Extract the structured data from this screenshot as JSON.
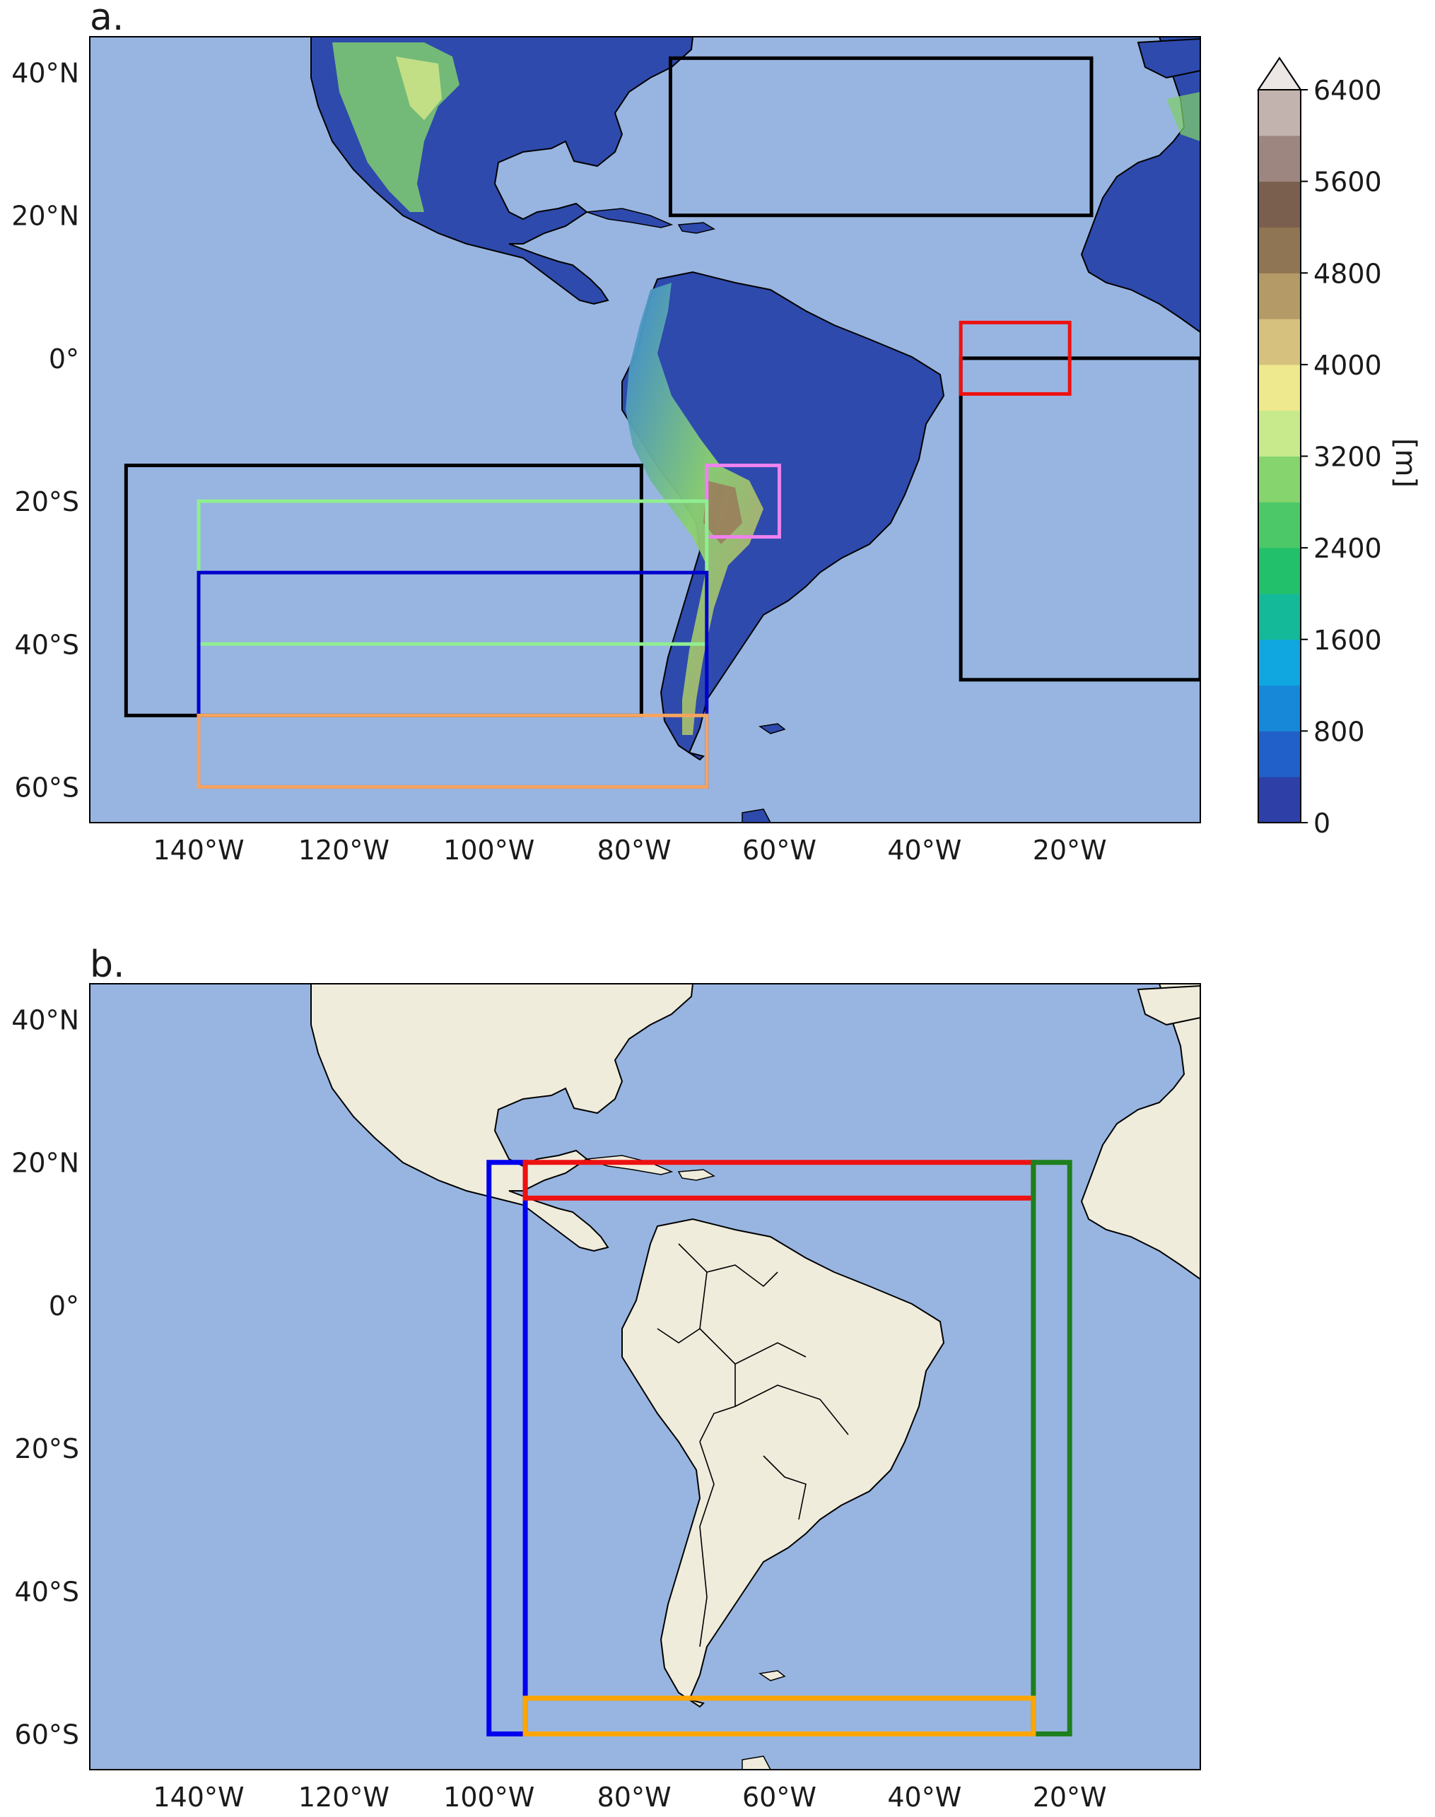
{
  "panels": [
    {
      "id": "a",
      "label": "a.",
      "colorbar": {
        "ticks": [
          "0",
          "800",
          "1600",
          "2400",
          "3200",
          "4000",
          "4800",
          "5600",
          "6400"
        ],
        "unit_label": "[m]",
        "levels": [
          0,
          400,
          800,
          1200,
          1600,
          2000,
          2400,
          2800,
          3200,
          3600,
          4000,
          4400,
          4800,
          5200,
          5600,
          6000,
          6400
        ],
        "colors": [
          "#2e40a8",
          "#2160c8",
          "#1788d8",
          "#10a7e0",
          "#14b99a",
          "#22c06a",
          "#4cc868",
          "#86d46e",
          "#c8ea8c",
          "#eee88e",
          "#d6c27e",
          "#b49a66",
          "#8f7553",
          "#7a5f4f",
          "#9e8680",
          "#c3b3ae",
          "#ece6e5"
        ]
      },
      "boxes": [
        {
          "color": "#000000",
          "lon": [
            -75,
            -17
          ],
          "lat": [
            20,
            42
          ]
        },
        {
          "color": "#000000",
          "lon": [
            -35,
            -2
          ],
          "lat": [
            -45,
            0
          ]
        },
        {
          "color": "#000000",
          "lon": [
            -150,
            -79
          ],
          "lat": [
            -50,
            -15
          ]
        },
        {
          "color": "#ee1111",
          "lon": [
            -35,
            -20
          ],
          "lat": [
            -5,
            5
          ]
        },
        {
          "color": "#ee82ee",
          "lon": [
            -70,
            -60
          ],
          "lat": [
            -25,
            -15
          ]
        },
        {
          "color": "#90ee90",
          "lon": [
            -140,
            -70
          ],
          "lat": [
            -40,
            -20
          ]
        },
        {
          "color": "#0000cc",
          "lon": [
            -140,
            -70
          ],
          "lat": [
            -60,
            -30
          ]
        },
        {
          "color": "#f4a460",
          "lon": [
            -140,
            -70
          ],
          "lat": [
            -60,
            -50
          ]
        }
      ]
    },
    {
      "id": "b",
      "label": "b.",
      "boxes": [
        {
          "color": "#0000ee",
          "lon": [
            -100,
            -95
          ],
          "lat": [
            -60,
            20
          ]
        },
        {
          "color": "#ee1111",
          "lon": [
            -95,
            -25
          ],
          "lat": [
            15,
            20
          ]
        },
        {
          "color": "#1e7f1e",
          "lon": [
            -25,
            -20
          ],
          "lat": [
            -60,
            20
          ]
        },
        {
          "color": "#ffa500",
          "lon": [
            -95,
            -25
          ],
          "lat": [
            -60,
            -55
          ]
        }
      ]
    }
  ],
  "lon_ticks": [
    {
      "value": -140,
      "label": "140°W"
    },
    {
      "value": -120,
      "label": "120°W"
    },
    {
      "value": -100,
      "label": "100°W"
    },
    {
      "value": -80,
      "label": "80°W"
    },
    {
      "value": -60,
      "label": "60°W"
    },
    {
      "value": -40,
      "label": "40°W"
    },
    {
      "value": -20,
      "label": "20°W"
    }
  ],
  "lat_ticks": [
    {
      "value": 40,
      "label": "40°N"
    },
    {
      "value": 20,
      "label": "20°N"
    },
    {
      "value": 0,
      "label": "0°"
    },
    {
      "value": -20,
      "label": "20°S"
    },
    {
      "value": -40,
      "label": "40°S"
    },
    {
      "value": -60,
      "label": "60°S"
    }
  ],
  "map_extent": {
    "lon": [
      -155,
      -2
    ],
    "lat": [
      -65,
      45
    ]
  },
  "colors": {
    "ocean": "#98b5e1",
    "land_b": "#efecdc",
    "coast": "#000000"
  }
}
